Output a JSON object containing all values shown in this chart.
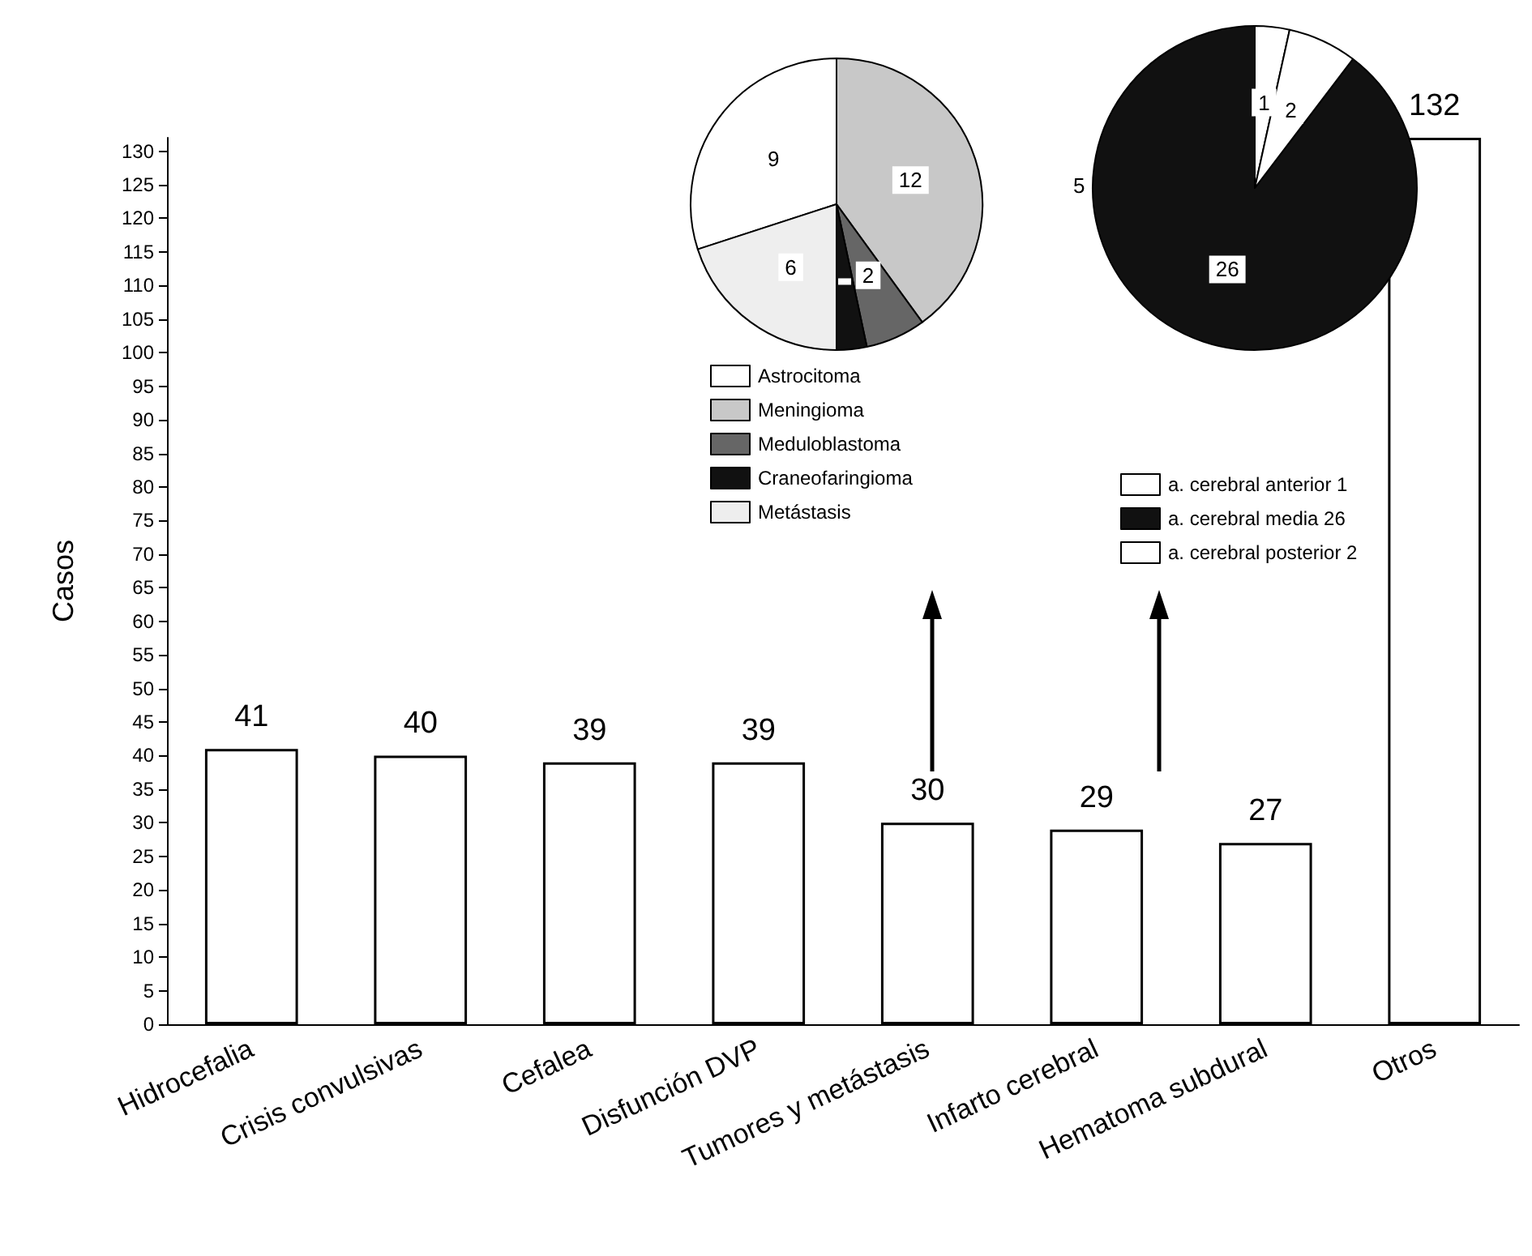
{
  "chart_data": [
    {
      "type": "bar",
      "ylabel": "Casos",
      "categories": [
        "Hidrocefalia",
        "Crisis convulsivas",
        "Cefalea",
        "Disfunción DVP",
        "Tumores y metástasis",
        "Infarto cerebral",
        "Hematoma subdural",
        "Otros"
      ],
      "values": [
        41,
        40,
        39,
        39,
        30,
        29,
        27,
        132
      ],
      "color": "#ffffff",
      "ylim": [
        0,
        132
      ],
      "yticks": [
        0,
        5,
        10,
        15,
        20,
        25,
        30,
        35,
        40,
        45,
        50,
        55,
        60,
        65,
        70,
        75,
        80,
        85,
        90,
        95,
        100,
        105,
        110,
        115,
        120,
        125,
        130
      ],
      "data_labels": true,
      "grid": false,
      "legend": false
    },
    {
      "type": "pie",
      "categories": [
        "Astrocitoma",
        "Meningioma",
        "Meduloblastoma",
        "Craneofaringioma",
        "Metástasis"
      ],
      "values": [
        9,
        12,
        2,
        1,
        6
      ],
      "colors": [
        "#ffffff",
        "#c8c8c8",
        "#666666",
        "#111111",
        "#eeeeee"
      ],
      "value_labels": [
        "9",
        "12",
        "2",
        null,
        "6"
      ],
      "legend": "bottom"
    },
    {
      "type": "pie",
      "categories": [
        "a. cerebral anterior 1",
        "a. cerebral media 26",
        "a. cerebral posterior 2"
      ],
      "values": [
        1,
        26,
        2
      ],
      "colors": [
        "#ffffff",
        "#111111",
        "#ffffff"
      ],
      "value_labels": [
        "1",
        "26",
        "2"
      ],
      "annotations": [
        "5"
      ],
      "legend": "bottom"
    }
  ]
}
